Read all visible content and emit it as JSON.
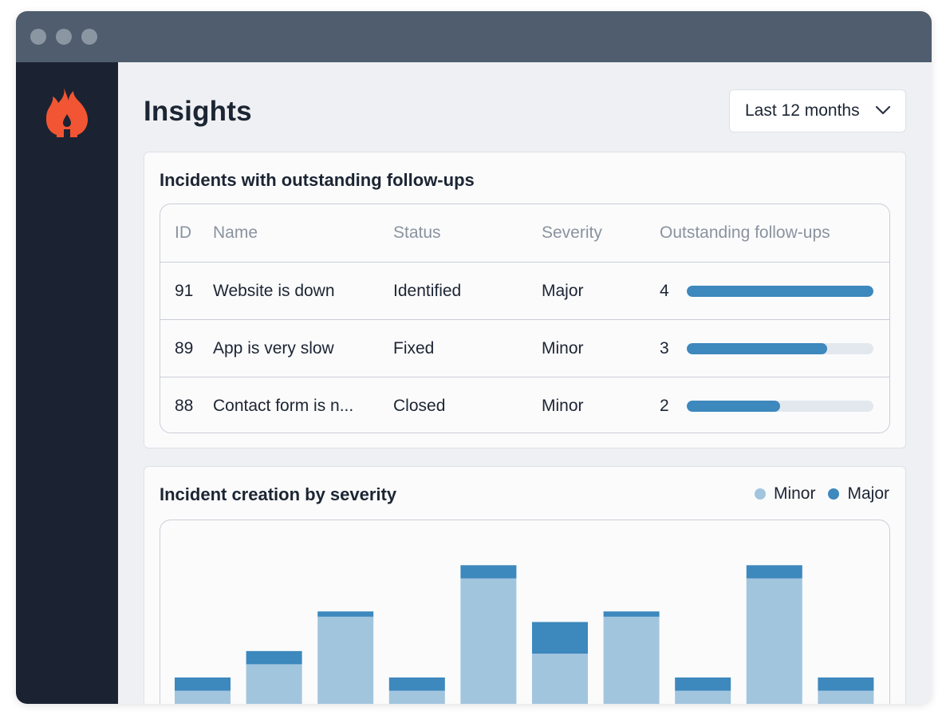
{
  "app": {
    "logo_icon": "flame-icon",
    "brand_color": "#f25533"
  },
  "header": {
    "title": "Insights",
    "range_select": {
      "value": "Last 12 months",
      "icon": "chevron-down-icon"
    }
  },
  "followups": {
    "title": "Incidents with outstanding follow-ups",
    "columns": [
      "ID",
      "Name",
      "Status",
      "Severity",
      "Outstanding follow-ups"
    ],
    "max_followups": 4,
    "rows": [
      {
        "id": "91",
        "name": "Website is down",
        "status": "Identified",
        "severity": "Major",
        "followups": "4"
      },
      {
        "id": "89",
        "name": "App is very slow",
        "status": "Fixed",
        "severity": "Minor",
        "followups": "3"
      },
      {
        "id": "88",
        "name": "Contact form is n...",
        "status": "Closed",
        "severity": "Minor",
        "followups": "2"
      }
    ]
  },
  "severity_chart": {
    "title": "Incident creation by severity",
    "legend": [
      {
        "label": "Minor",
        "color": "#a2c5de"
      },
      {
        "label": "Major",
        "color": "#3d88bd"
      }
    ]
  },
  "chart_data": {
    "type": "bar",
    "stacked": true,
    "title": "Incident creation by severity",
    "categories": [
      "",
      "",
      "",
      "",
      "",
      "",
      "",
      "",
      "",
      ""
    ],
    "series": [
      {
        "name": "Minor",
        "color": "#a2c5de",
        "values": [
          1.6,
          3.6,
          7.2,
          1.6,
          10.1,
          4.4,
          7.2,
          1.6,
          10.1,
          1.6
        ]
      },
      {
        "name": "Major",
        "color": "#3d88bd",
        "values": [
          1.0,
          1.0,
          0.4,
          1.0,
          1.0,
          2.4,
          0.4,
          1.0,
          1.0,
          1.0
        ]
      }
    ],
    "ylim": [
      0,
      14.5
    ],
    "grid": false,
    "legend_position": "top-right"
  }
}
